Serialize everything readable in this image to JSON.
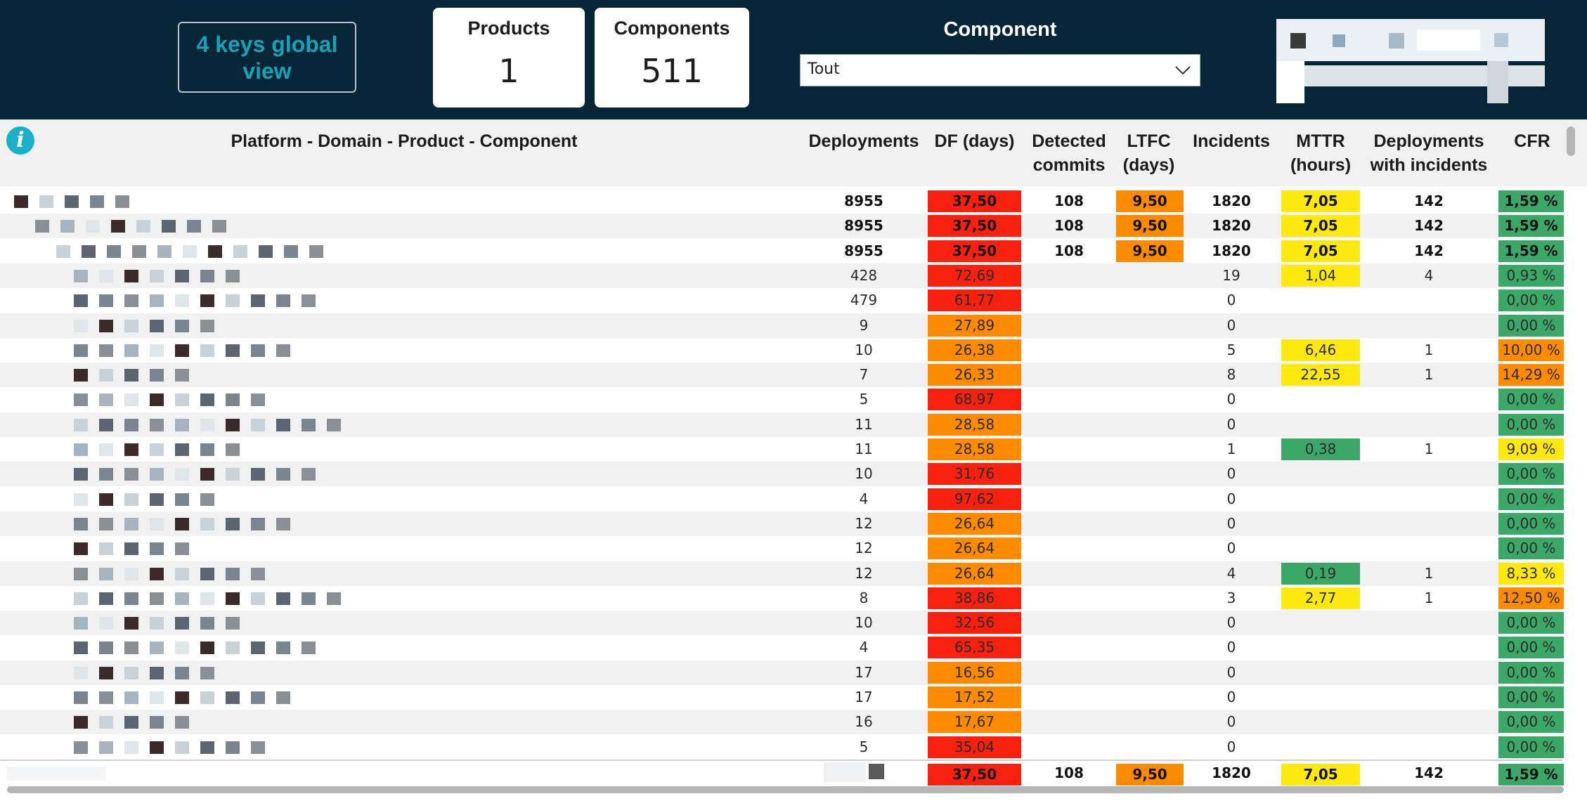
{
  "header": {
    "global_view_button": "4 keys global view",
    "products_card": {
      "label": "Products",
      "value": "1"
    },
    "components_card": {
      "label": "Components",
      "value": "511"
    },
    "component_filter": {
      "label": "Component",
      "selected": "Tout"
    }
  },
  "table": {
    "columns": [
      "Platform - Domain - Product - Component",
      "Deployments",
      "DF (days)",
      "Detected commits",
      "LTFC (days)",
      "Incidents",
      "MTTR (hours)",
      "Deployments with incidents",
      "CFR"
    ],
    "colors": {
      "red": "#f8210f",
      "orange": "#fd8b00",
      "yellow": "#fde910",
      "green": "#3ca868"
    },
    "rows": [
      {
        "deployments": "8955",
        "df": "37,50",
        "df_color": "red",
        "commits": "108",
        "ltfc": "9,50",
        "ltfc_color": "orange",
        "incidents": "1820",
        "mttr": "7,05",
        "mttr_color": "yellow",
        "dep_inc": "142",
        "cfr": "1,59 %",
        "cfr_color": "green",
        "bold": true
      },
      {
        "deployments": "8955",
        "df": "37,50",
        "df_color": "red",
        "commits": "108",
        "ltfc": "9,50",
        "ltfc_color": "orange",
        "incidents": "1820",
        "mttr": "7,05",
        "mttr_color": "yellow",
        "dep_inc": "142",
        "cfr": "1,59 %",
        "cfr_color": "green",
        "bold": true
      },
      {
        "deployments": "8955",
        "df": "37,50",
        "df_color": "red",
        "commits": "108",
        "ltfc": "9,50",
        "ltfc_color": "orange",
        "incidents": "1820",
        "mttr": "7,05",
        "mttr_color": "yellow",
        "dep_inc": "142",
        "cfr": "1,59 %",
        "cfr_color": "green",
        "bold": true
      },
      {
        "deployments": "428",
        "df": "72,69",
        "df_color": "red",
        "commits": "",
        "ltfc": "",
        "ltfc_color": "",
        "incidents": "19",
        "mttr": "1,04",
        "mttr_color": "yellow",
        "dep_inc": "4",
        "cfr": "0,93 %",
        "cfr_color": "green"
      },
      {
        "deployments": "479",
        "df": "61,77",
        "df_color": "red",
        "commits": "",
        "ltfc": "",
        "ltfc_color": "",
        "incidents": "0",
        "mttr": "",
        "mttr_color": "",
        "dep_inc": "",
        "cfr": "0,00 %",
        "cfr_color": "green"
      },
      {
        "deployments": "9",
        "df": "27,89",
        "df_color": "orange",
        "commits": "",
        "ltfc": "",
        "ltfc_color": "",
        "incidents": "0",
        "mttr": "",
        "mttr_color": "",
        "dep_inc": "",
        "cfr": "0,00 %",
        "cfr_color": "green"
      },
      {
        "deployments": "10",
        "df": "26,38",
        "df_color": "orange",
        "commits": "",
        "ltfc": "",
        "ltfc_color": "",
        "incidents": "5",
        "mttr": "6,46",
        "mttr_color": "yellow",
        "dep_inc": "1",
        "cfr": "10,00 %",
        "cfr_color": "orange"
      },
      {
        "deployments": "7",
        "df": "26,33",
        "df_color": "orange",
        "commits": "",
        "ltfc": "",
        "ltfc_color": "",
        "incidents": "8",
        "mttr": "22,55",
        "mttr_color": "yellow",
        "dep_inc": "1",
        "cfr": "14,29 %",
        "cfr_color": "orange"
      },
      {
        "deployments": "5",
        "df": "68,97",
        "df_color": "red",
        "commits": "",
        "ltfc": "",
        "ltfc_color": "",
        "incidents": "0",
        "mttr": "",
        "mttr_color": "",
        "dep_inc": "",
        "cfr": "0,00 %",
        "cfr_color": "green"
      },
      {
        "deployments": "11",
        "df": "28,58",
        "df_color": "orange",
        "commits": "",
        "ltfc": "",
        "ltfc_color": "",
        "incidents": "0",
        "mttr": "",
        "mttr_color": "",
        "dep_inc": "",
        "cfr": "0,00 %",
        "cfr_color": "green"
      },
      {
        "deployments": "11",
        "df": "28,58",
        "df_color": "orange",
        "commits": "",
        "ltfc": "",
        "ltfc_color": "",
        "incidents": "1",
        "mttr": "0,38",
        "mttr_color": "green",
        "dep_inc": "1",
        "cfr": "9,09 %",
        "cfr_color": "yellow"
      },
      {
        "deployments": "10",
        "df": "31,76",
        "df_color": "red",
        "commits": "",
        "ltfc": "",
        "ltfc_color": "",
        "incidents": "0",
        "mttr": "",
        "mttr_color": "",
        "dep_inc": "",
        "cfr": "0,00 %",
        "cfr_color": "green"
      },
      {
        "deployments": "4",
        "df": "97,62",
        "df_color": "red",
        "commits": "",
        "ltfc": "",
        "ltfc_color": "",
        "incidents": "0",
        "mttr": "",
        "mttr_color": "",
        "dep_inc": "",
        "cfr": "0,00 %",
        "cfr_color": "green"
      },
      {
        "deployments": "12",
        "df": "26,64",
        "df_color": "orange",
        "commits": "",
        "ltfc": "",
        "ltfc_color": "",
        "incidents": "0",
        "mttr": "",
        "mttr_color": "",
        "dep_inc": "",
        "cfr": "0,00 %",
        "cfr_color": "green"
      },
      {
        "deployments": "12",
        "df": "26,64",
        "df_color": "orange",
        "commits": "",
        "ltfc": "",
        "ltfc_color": "",
        "incidents": "0",
        "mttr": "",
        "mttr_color": "",
        "dep_inc": "",
        "cfr": "0,00 %",
        "cfr_color": "green"
      },
      {
        "deployments": "12",
        "df": "26,64",
        "df_color": "orange",
        "commits": "",
        "ltfc": "",
        "ltfc_color": "",
        "incidents": "4",
        "mttr": "0,19",
        "mttr_color": "green",
        "dep_inc": "1",
        "cfr": "8,33 %",
        "cfr_color": "yellow"
      },
      {
        "deployments": "8",
        "df": "38,86",
        "df_color": "red",
        "commits": "",
        "ltfc": "",
        "ltfc_color": "",
        "incidents": "3",
        "mttr": "2,77",
        "mttr_color": "yellow",
        "dep_inc": "1",
        "cfr": "12,50 %",
        "cfr_color": "orange"
      },
      {
        "deployments": "10",
        "df": "32,56",
        "df_color": "red",
        "commits": "",
        "ltfc": "",
        "ltfc_color": "",
        "incidents": "0",
        "mttr": "",
        "mttr_color": "",
        "dep_inc": "",
        "cfr": "0,00 %",
        "cfr_color": "green"
      },
      {
        "deployments": "4",
        "df": "65,35",
        "df_color": "red",
        "commits": "",
        "ltfc": "",
        "ltfc_color": "",
        "incidents": "0",
        "mttr": "",
        "mttr_color": "",
        "dep_inc": "",
        "cfr": "0,00 %",
        "cfr_color": "green"
      },
      {
        "deployments": "17",
        "df": "16,56",
        "df_color": "orange",
        "commits": "",
        "ltfc": "",
        "ltfc_color": "",
        "incidents": "0",
        "mttr": "",
        "mttr_color": "",
        "dep_inc": "",
        "cfr": "0,00 %",
        "cfr_color": "green"
      },
      {
        "deployments": "17",
        "df": "17,52",
        "df_color": "orange",
        "commits": "",
        "ltfc": "",
        "ltfc_color": "",
        "incidents": "0",
        "mttr": "",
        "mttr_color": "",
        "dep_inc": "",
        "cfr": "0,00 %",
        "cfr_color": "green"
      },
      {
        "deployments": "16",
        "df": "17,67",
        "df_color": "orange",
        "commits": "",
        "ltfc": "",
        "ltfc_color": "",
        "incidents": "0",
        "mttr": "",
        "mttr_color": "",
        "dep_inc": "",
        "cfr": "0,00 %",
        "cfr_color": "green"
      },
      {
        "deployments": "5",
        "df": "35,04",
        "df_color": "red",
        "commits": "",
        "ltfc": "",
        "ltfc_color": "",
        "incidents": "0",
        "mttr": "",
        "mttr_color": "",
        "dep_inc": "",
        "cfr": "0,00 %",
        "cfr_color": "green"
      }
    ],
    "total": {
      "df": "37,50",
      "df_color": "red",
      "commits": "108",
      "ltfc": "9,50",
      "ltfc_color": "orange",
      "incidents": "1820",
      "mttr": "7,05",
      "mttr_color": "yellow",
      "dep_inc": "142",
      "cfr": "1,59 %",
      "cfr_color": "green"
    }
  }
}
